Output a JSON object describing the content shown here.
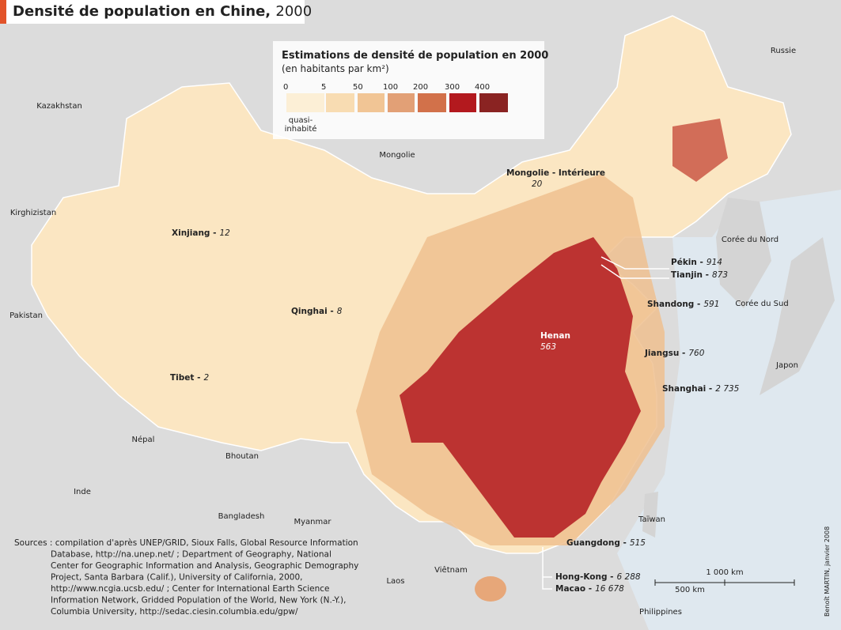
{
  "header": {
    "title": "Densité de population en Chine,",
    "year": "2000"
  },
  "legend": {
    "title": "Estimations de densité de population en 2000",
    "subtitle": "(en habitants par km²)",
    "breaks": [
      "0",
      "5",
      "50",
      "100",
      "200",
      "300",
      "400"
    ],
    "empty_label": [
      "quasi-",
      "inhabité"
    ],
    "colors": [
      "#fcefd6",
      "#f8dcb2",
      "#f1c595",
      "#e2a076",
      "#d2714a",
      "#b3191e",
      "#8a2322"
    ]
  },
  "countries": [
    "Russie",
    "Kazakhstan",
    "Mongolie",
    "Kirghizistan",
    "Corée du Nord",
    "Corée du Sud",
    "Japon",
    "Pakistan",
    "Népal",
    "Bhoutan",
    "Inde",
    "Bangladesh",
    "Myanmar",
    "Taïwan",
    "Viêtnam",
    "Laos",
    "Philippines"
  ],
  "provinces": [
    {
      "label": "Xinjiang -",
      "density": "12"
    },
    {
      "label": "Qinghai -",
      "density": "8"
    },
    {
      "label": "Tibet -",
      "density": "2"
    },
    {
      "label": "Mongolie - Intérieure",
      "density": "20"
    },
    {
      "label": "Henan",
      "density": "563"
    },
    {
      "label": "Pékin -",
      "density": "914"
    },
    {
      "label": "Tianjin -",
      "density": "873"
    },
    {
      "label": "Shandong -",
      "density": "591"
    },
    {
      "label": "Jiangsu -",
      "density": "760"
    },
    {
      "label": "Shanghai -",
      "density": "2 735"
    },
    {
      "label": "Guangdong -",
      "density": "515"
    },
    {
      "label": "Hong-Kong -",
      "density": "6 288"
    },
    {
      "label": "Macao -",
      "density": "16 678"
    }
  ],
  "scale": {
    "long": "1 000 km",
    "short": "500 km"
  },
  "credit": "Benoît MARTIN, janvier 2008",
  "sources": [
    "Sources : compilation d'après UNEP/GRID, Sioux Falls, Global Resource Information",
    "Database, http://na.unep.net/ ; Department of Geography, National",
    "Center for Geographic Information and Analysis, Geographic Demography",
    "Project, Santa Barbara (Calif.), University of California, 2000,",
    "http://www.ncgia.ucsb.edu/ ; Center for International Earth Science",
    "Information Network, Gridded Population of the World, New York (N.-Y.),",
    "Columbia University, http://sedac.ciesin.columbia.edu/gpw/"
  ]
}
